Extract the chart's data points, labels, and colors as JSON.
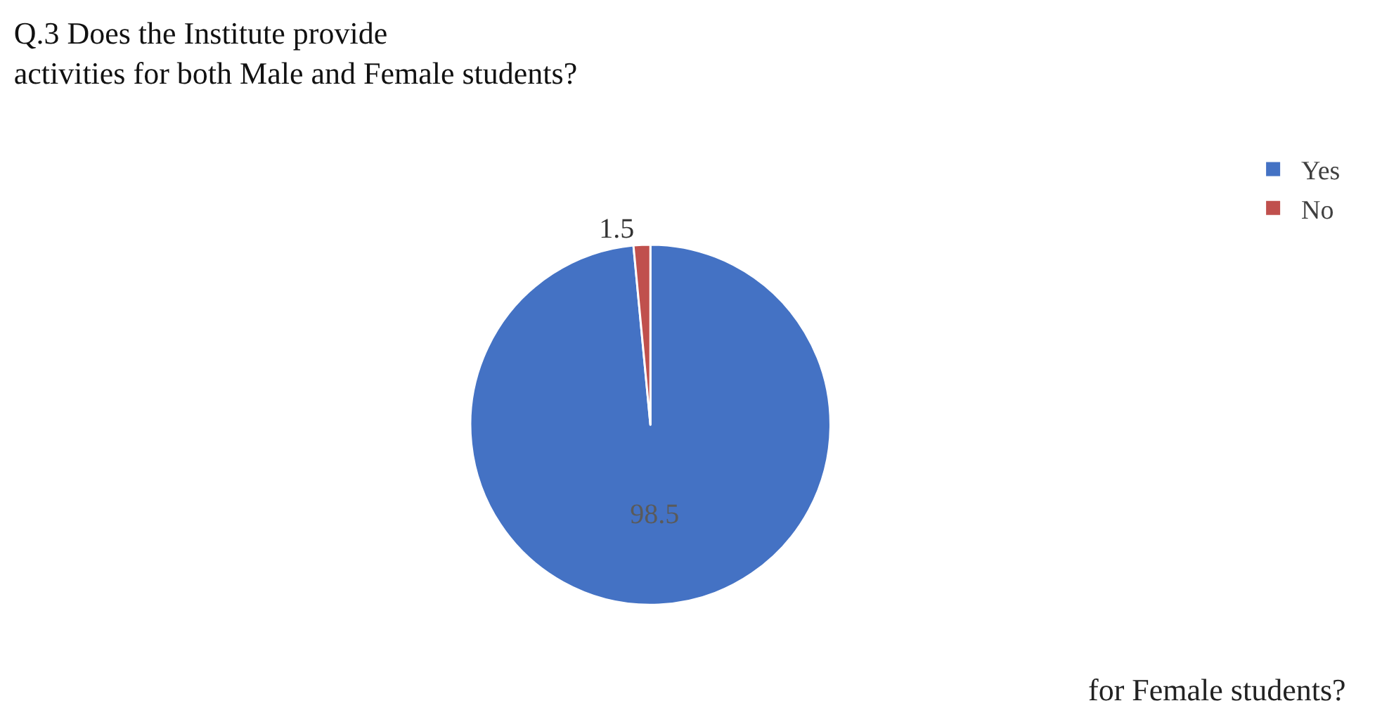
{
  "chart_data": {
    "type": "pie",
    "title": "Q.3 Does the Institute provide\nactivities for both Male and Female students?",
    "categories": [
      "Yes",
      "No"
    ],
    "values": [
      98.5,
      1.5
    ],
    "colors": [
      "#4472c4",
      "#c0504d"
    ],
    "data_labels": true,
    "legend": "top right",
    "annotations": [
      "for Female students?"
    ]
  }
}
